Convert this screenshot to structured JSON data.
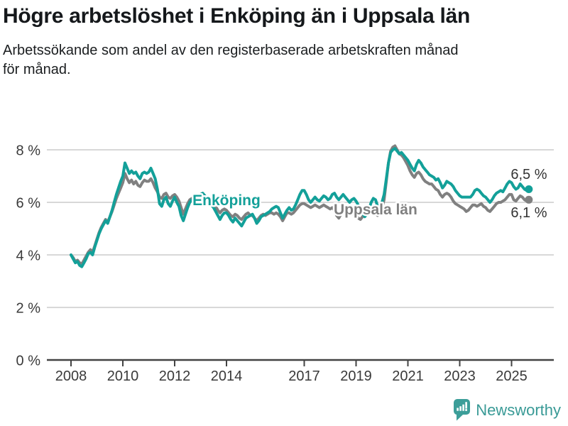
{
  "page": {
    "title": "Högre arbetslöshet i Enköping än i Uppsala län",
    "subtitle": "Arbetssökande som andel av den registerbaserade arbetskraften månad för månad.",
    "subtitle_lines": [
      "Arbetssökande som andel av den registerbaserade arbetskraften månad",
      "för månad."
    ]
  },
  "colors": {
    "enkoping": "#13a099",
    "uppsala": "#808080",
    "grid": "#d8d8d8",
    "axis": "#434343",
    "axis_text": "#3a3a3a",
    "value_label": "#333333",
    "brand": "#3c9e99"
  },
  "footer": {
    "brand": "Newsworthy",
    "logo_icon": "speech-bubble-bar-chart"
  },
  "chart_data": {
    "type": "line",
    "x_start_year": 2008,
    "months_per_point": 1,
    "x_tick_years": [
      2008,
      2010,
      2012,
      2014,
      2017,
      2019,
      2021,
      2023,
      2025
    ],
    "y_ticks": [
      {
        "value": 0,
        "label": "0 %"
      },
      {
        "value": 2,
        "label": "2 %"
      },
      {
        "value": 4,
        "label": "4 %"
      },
      {
        "value": 6,
        "label": "6 %"
      },
      {
        "value": 8,
        "label": "8 %"
      }
    ],
    "ylim": [
      0,
      8.6
    ],
    "grid": true,
    "legend_position": "inline-labels",
    "series": [
      {
        "id": "uppsala-lan",
        "name": "Uppsala län",
        "color_key": "uppsala",
        "label": {
          "text": "Uppsala län",
          "year": 2019.75,
          "value": 5.73
        },
        "end_label": {
          "text": "6,1 %",
          "year": 2025.67,
          "value": 5.43
        },
        "values": [
          4.0,
          3.9,
          3.75,
          3.8,
          3.7,
          3.65,
          3.8,
          3.95,
          4.1,
          4.2,
          4.1,
          4.35,
          4.6,
          4.85,
          5.05,
          5.2,
          5.35,
          5.25,
          5.45,
          5.65,
          5.9,
          6.15,
          6.35,
          6.55,
          6.75,
          7.1,
          6.9,
          6.75,
          6.85,
          6.7,
          6.8,
          6.65,
          6.6,
          6.75,
          6.85,
          6.8,
          6.8,
          6.9,
          6.75,
          6.55,
          6.4,
          6.2,
          6.15,
          6.3,
          6.35,
          6.2,
          6.15,
          6.25,
          6.3,
          6.2,
          6.05,
          5.8,
          5.55,
          5.75,
          5.95,
          6.1,
          6.15,
          6.1,
          6.15,
          6.2,
          6.25,
          6.3,
          6.2,
          6.15,
          6.1,
          6.05,
          5.95,
          5.85,
          5.7,
          5.6,
          5.7,
          5.75,
          5.7,
          5.6,
          5.5,
          5.45,
          5.55,
          5.5,
          5.4,
          5.35,
          5.45,
          5.55,
          5.6,
          5.5,
          5.5,
          5.4,
          5.3,
          5.4,
          5.5,
          5.55,
          5.5,
          5.55,
          5.6,
          5.6,
          5.55,
          5.6,
          5.55,
          5.45,
          5.3,
          5.45,
          5.6,
          5.6,
          5.55,
          5.6,
          5.7,
          5.8,
          5.9,
          5.95,
          5.95,
          5.9,
          5.85,
          5.8,
          5.85,
          5.9,
          5.85,
          5.8,
          5.85,
          5.9,
          5.85,
          5.8,
          5.75,
          5.8,
          5.7,
          5.5,
          5.4,
          5.55,
          5.7,
          5.75,
          5.7,
          5.6,
          5.55,
          5.6,
          5.5,
          5.4,
          5.35,
          5.45,
          5.55,
          5.6,
          5.7,
          5.75,
          5.7,
          5.6,
          5.5,
          5.6,
          5.8,
          6.1,
          6.8,
          7.5,
          7.95,
          8.1,
          8.15,
          8.0,
          7.85,
          7.8,
          7.7,
          7.55,
          7.4,
          7.2,
          7.05,
          6.95,
          7.1,
          7.15,
          7.05,
          6.9,
          6.8,
          6.75,
          6.7,
          6.7,
          6.6,
          6.5,
          6.45,
          6.3,
          6.2,
          6.3,
          6.35,
          6.3,
          6.2,
          6.05,
          5.95,
          5.9,
          5.85,
          5.8,
          5.75,
          5.65,
          5.7,
          5.8,
          5.9,
          5.9,
          5.85,
          5.9,
          5.95,
          5.85,
          5.8,
          5.7,
          5.65,
          5.75,
          5.85,
          5.95,
          6.0,
          6.0,
          6.05,
          6.1,
          6.2,
          6.3,
          6.3,
          6.1,
          6.05,
          6.15,
          6.25,
          6.2,
          6.1,
          6.05,
          6.1
        ]
      },
      {
        "id": "enkoping",
        "name": "Enköping",
        "color_key": "enkoping",
        "label": {
          "text": "Enköping",
          "year": 2014.0,
          "value": 6.08
        },
        "end_label": {
          "text": "6,5 %",
          "year": 2025.67,
          "value": 6.89
        },
        "values": [
          4.0,
          3.85,
          3.7,
          3.75,
          3.6,
          3.55,
          3.7,
          3.85,
          4.05,
          4.1,
          4.0,
          4.3,
          4.55,
          4.8,
          5.0,
          5.15,
          5.3,
          5.2,
          5.45,
          5.7,
          6.0,
          6.3,
          6.55,
          6.8,
          7.0,
          7.5,
          7.3,
          7.1,
          7.2,
          7.1,
          7.15,
          7.0,
          6.9,
          7.1,
          7.15,
          7.1,
          7.15,
          7.3,
          7.1,
          6.9,
          6.5,
          5.95,
          5.85,
          6.1,
          6.2,
          5.95,
          5.85,
          6.05,
          6.2,
          6.0,
          5.85,
          5.5,
          5.3,
          5.55,
          5.8,
          6.0,
          6.1,
          6.05,
          6.15,
          6.25,
          6.3,
          6.35,
          6.25,
          6.1,
          6.0,
          5.9,
          5.8,
          5.65,
          5.5,
          5.35,
          5.5,
          5.6,
          5.6,
          5.5,
          5.35,
          5.25,
          5.4,
          5.3,
          5.2,
          5.1,
          5.25,
          5.4,
          5.45,
          5.5,
          5.55,
          5.4,
          5.2,
          5.3,
          5.45,
          5.5,
          5.55,
          5.6,
          5.65,
          5.75,
          5.8,
          5.85,
          5.8,
          5.6,
          5.4,
          5.55,
          5.7,
          5.8,
          5.7,
          5.75,
          5.9,
          6.1,
          6.3,
          6.45,
          6.45,
          6.3,
          6.1,
          6.0,
          6.1,
          6.2,
          6.1,
          6.05,
          6.15,
          6.25,
          6.2,
          6.1,
          6.15,
          6.3,
          6.35,
          6.2,
          6.1,
          6.2,
          6.3,
          6.2,
          6.1,
          6.0,
          6.1,
          6.15,
          6.05,
          5.9,
          5.75,
          5.6,
          5.45,
          5.55,
          5.75,
          6.0,
          6.15,
          6.1,
          5.85,
          5.8,
          6.0,
          6.3,
          6.9,
          7.5,
          7.9,
          8.0,
          8.05,
          7.95,
          7.85,
          7.9,
          7.8,
          7.7,
          7.6,
          7.45,
          7.3,
          7.2,
          7.45,
          7.6,
          7.5,
          7.35,
          7.25,
          7.15,
          7.05,
          7.0,
          6.95,
          6.85,
          6.9,
          6.75,
          6.55,
          6.65,
          6.8,
          6.75,
          6.7,
          6.6,
          6.45,
          6.35,
          6.25,
          6.2,
          6.2,
          6.2,
          6.2,
          6.2,
          6.3,
          6.45,
          6.5,
          6.45,
          6.35,
          6.25,
          6.2,
          6.1,
          6.0,
          6.1,
          6.25,
          6.35,
          6.4,
          6.45,
          6.4,
          6.55,
          6.7,
          6.8,
          6.75,
          6.6,
          6.5,
          6.55,
          6.7,
          6.6,
          6.5,
          6.45,
          6.5
        ]
      }
    ]
  }
}
